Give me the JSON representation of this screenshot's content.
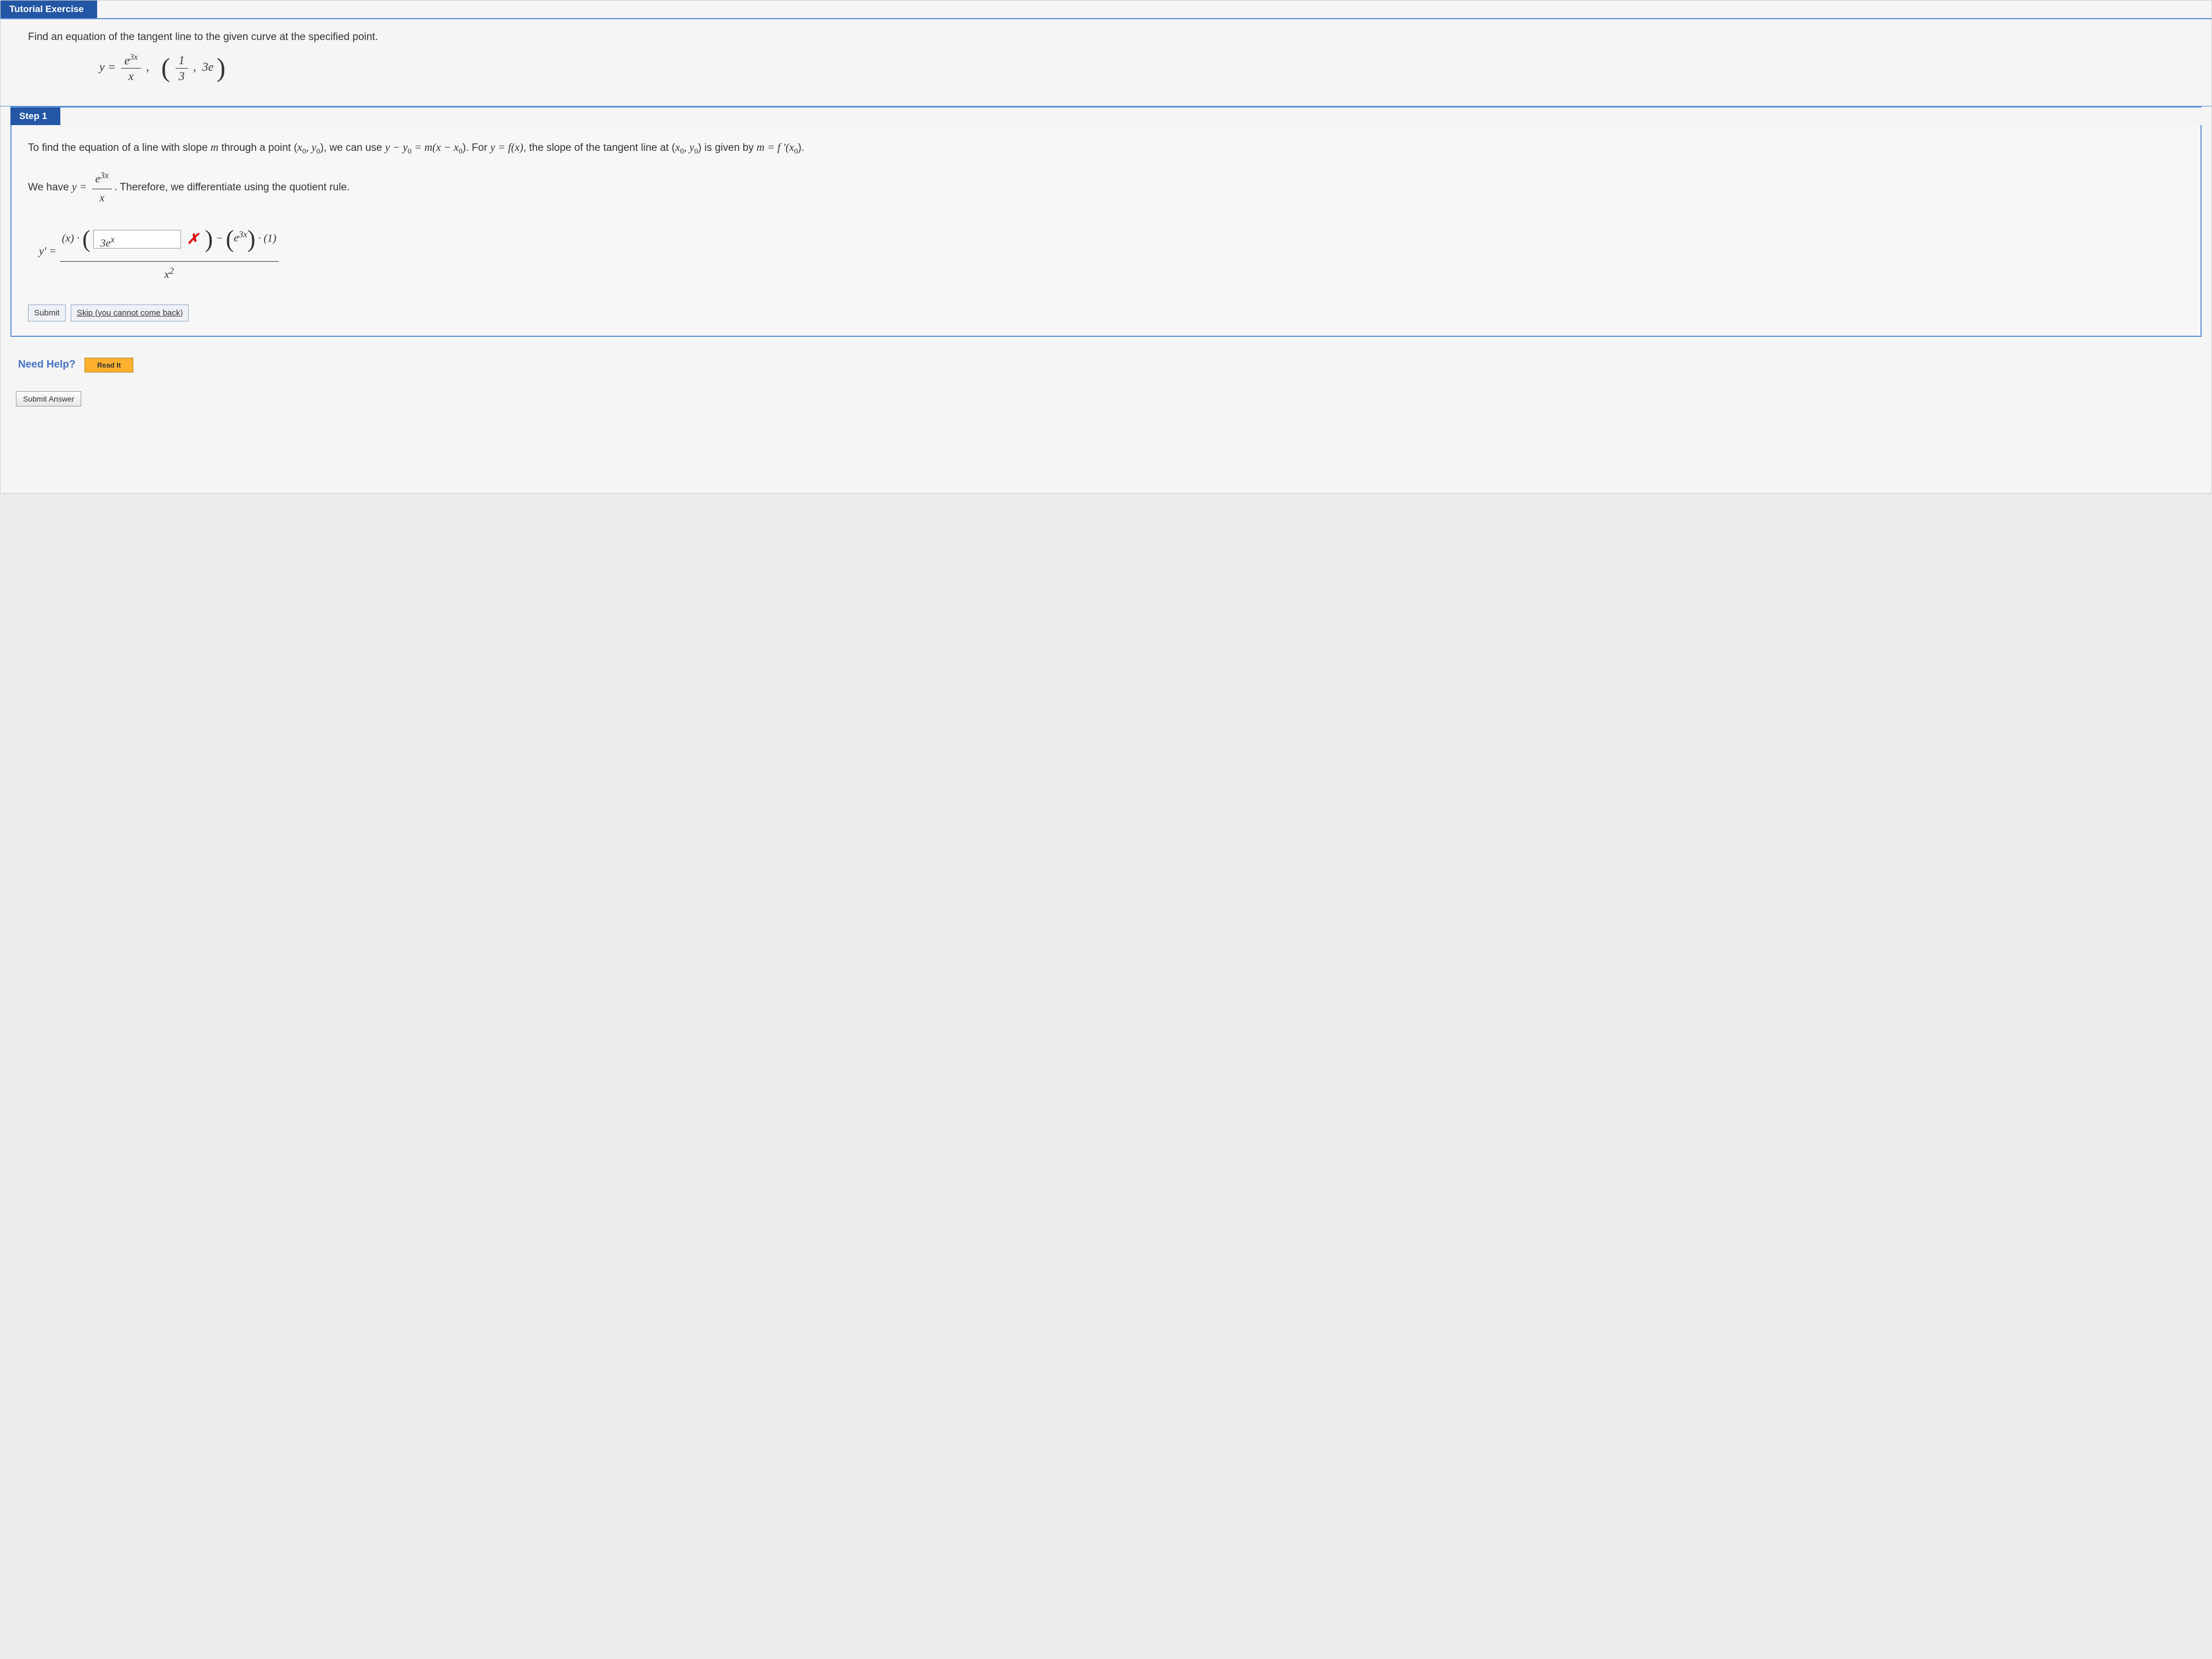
{
  "header": {
    "tab_label": "Tutorial Exercise"
  },
  "problem": {
    "statement": "Find an equation of the tangent line to the given curve at the specified point.",
    "equation_lhs": "y =",
    "equation_frac_num": "e",
    "equation_frac_num_sup": "3x",
    "equation_frac_den": "x",
    "point_sep": ",",
    "point_frac_num": "1",
    "point_frac_den": "3",
    "point_y": "3e"
  },
  "step": {
    "label": "Step 1",
    "para1_a": "To find the equation of a line with slope ",
    "para1_m": "m",
    "para1_b": " through a point (",
    "para1_x0": "x",
    "para1_y0": "y",
    "para1_c": "), we can use ",
    "para1_eq": "y − y",
    "para1_eq2": " = m(x − x",
    "para1_d": "). For ",
    "para1_e": "y = f(x)",
    "para1_f": ", the slope of the tangent line at (",
    "para1_g": ") is given by ",
    "para1_h": "m = f ′(x",
    "para1_i": ").",
    "para2_a": "We have ",
    "para2_y": "y =",
    "para2_frac_num": "e",
    "para2_frac_num_sup": "3x",
    "para2_frac_den": "x",
    "para2_b": ". Therefore, we differentiate using the quotient rule.",
    "deriv_lhs": "y′ =",
    "deriv_top_pre": "(x) ·",
    "deriv_input_value": "3e",
    "deriv_input_sup": "x",
    "deriv_incorrect_mark": "✗",
    "deriv_top_mid": "− ",
    "deriv_top_e": "e",
    "deriv_top_e_sup": "3x",
    "deriv_top_post": " · (1)",
    "deriv_bot": "x",
    "deriv_bot_sup": "2"
  },
  "buttons": {
    "submit_step": "Submit",
    "skip": "Skip (you cannot come back)",
    "need_help": "Need Help?",
    "read_it": "Read It",
    "submit_answer": "Submit Answer"
  },
  "colors": {
    "header_bg": "#2456a6",
    "border_blue": "#5a8fd6",
    "incorrect": "#dd0000",
    "need_help": "#4472c4",
    "read_it_bg": "#ffb02e"
  }
}
